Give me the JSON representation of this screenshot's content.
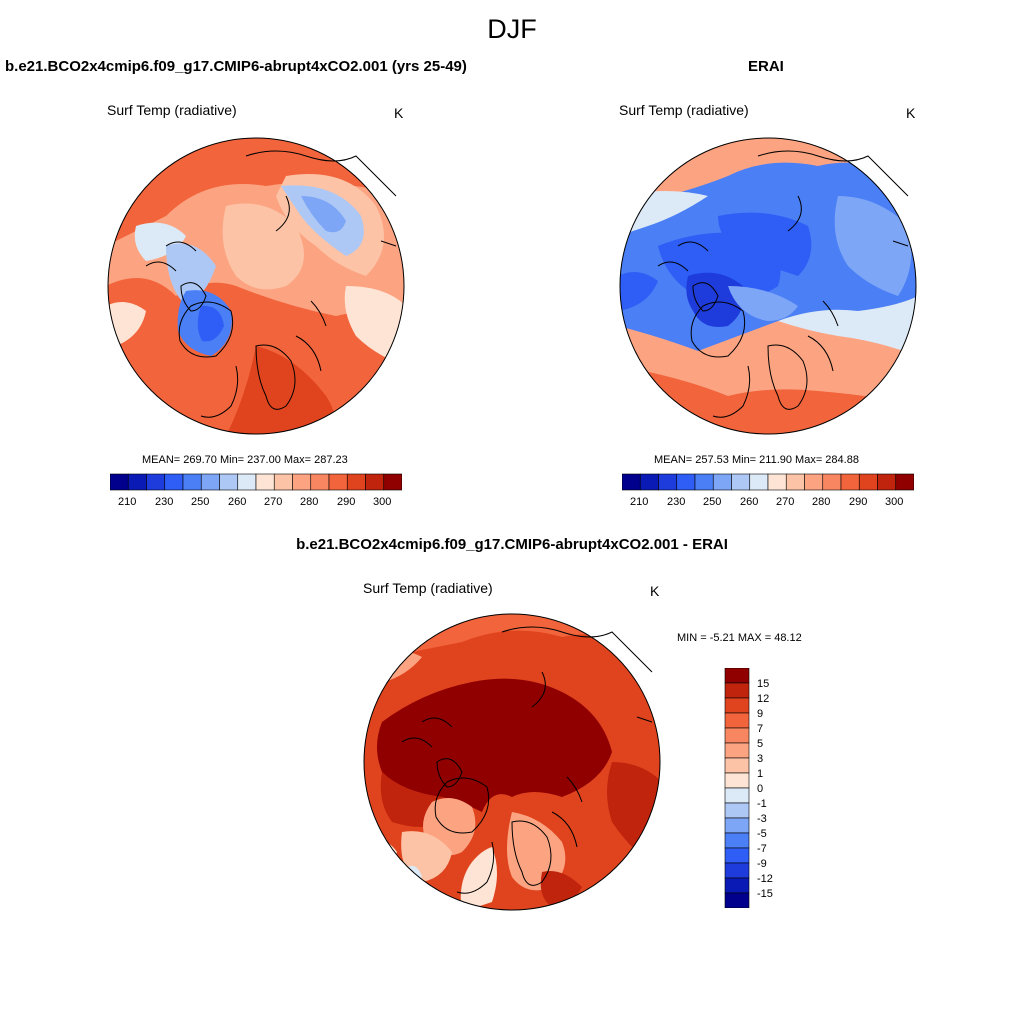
{
  "figure": {
    "title": "DJF"
  },
  "colors": {
    "abs_scale": [
      "#00008c",
      "#0a1ab4",
      "#1e3cdc",
      "#2e5ef5",
      "#4a7ff5",
      "#7da6f7",
      "#aec8f5",
      "#dce9f7",
      "#fde4d4",
      "#fcc3a6",
      "#fca482",
      "#f88660",
      "#f2643c",
      "#e0441e",
      "#c0240c",
      "#900000"
    ],
    "diff_scale": [
      "#00008c",
      "#0a1ab4",
      "#1e3cdc",
      "#2e5ef5",
      "#4a7ff5",
      "#7da6f7",
      "#aec8f5",
      "#dce9f7",
      "#fde4d4",
      "#fcc3a6",
      "#fca482",
      "#f88660",
      "#f2643c",
      "#e0441e",
      "#c0240c",
      "#900000"
    ],
    "coast": "#000000"
  },
  "panels": {
    "model": {
      "title": "b.e21.BCO2x4cmip6.f09_g17.CMIP6-abrupt4xCO2.001 (yrs 25-49)",
      "variable": "Surf Temp (radiative)",
      "units": "K",
      "stats": "MEAN= 269.70  Min= 237.00  Max= 287.23",
      "colorbar_ticks": [
        "210",
        "230",
        "250",
        "260",
        "270",
        "280",
        "290",
        "300"
      ]
    },
    "obs": {
      "title": "ERAI",
      "variable": "Surf Temp (radiative)",
      "units": "K",
      "stats": "MEAN= 257.53  Min= 211.90  Max= 284.88",
      "colorbar_ticks": [
        "210",
        "230",
        "250",
        "260",
        "270",
        "280",
        "290",
        "300"
      ]
    },
    "diff": {
      "title": "b.e21.BCO2x4cmip6.f09_g17.CMIP6-abrupt4xCO2.001 - ERAI",
      "variable": "Surf Temp (radiative)",
      "units": "K",
      "stats": "MIN =  -5.21 MAX =  48.12",
      "colorbar_ticks": [
        "15",
        "12",
        "9",
        "7",
        "5",
        "3",
        "1",
        "0",
        "-1",
        "-3",
        "-5",
        "-7",
        "-9",
        "-12",
        "-15"
      ]
    }
  },
  "maps": {
    "model": {
      "summary_level": 269.7,
      "low": 237.0,
      "high": 287.23
    },
    "obs": {
      "summary_level": 257.53,
      "low": 211.9,
      "high": 284.88
    },
    "diff": {
      "low": -5.21,
      "high": 48.12
    }
  }
}
